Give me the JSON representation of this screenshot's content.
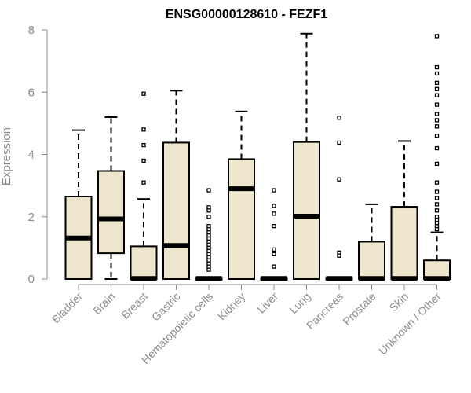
{
  "chart_data": {
    "type": "box",
    "title": "ENSG00000128610 - FEZF1",
    "xlabel": "",
    "ylabel": "Expression",
    "ylim": [
      0,
      8
    ],
    "yticks": [
      0,
      2,
      4,
      6,
      8
    ],
    "grid": false,
    "box_fill": "#ede6cd",
    "stroke": "#000000",
    "categories": [
      "Bladder",
      "Brain",
      "Breast",
      "Gastric",
      "Hematopoietic cells",
      "Kidney",
      "Liver",
      "Lung",
      "Pancreas",
      "Prostate",
      "Skin",
      "Unknown / Other"
    ],
    "boxes": [
      {
        "label": "Bladder",
        "min": 0,
        "q1": 0,
        "median": 1.32,
        "q3": 2.65,
        "max": 4.78,
        "outliers": []
      },
      {
        "label": "Brain",
        "min": 0,
        "q1": 0.83,
        "median": 1.93,
        "q3": 3.47,
        "max": 5.2,
        "outliers": []
      },
      {
        "label": "Breast",
        "min": 0,
        "q1": 0,
        "median": 0.02,
        "q3": 1.05,
        "max": 2.57,
        "outliers": [
          3.1,
          3.8,
          4.3,
          4.8,
          5.95
        ]
      },
      {
        "label": "Gastric",
        "min": 0,
        "q1": 0,
        "median": 1.08,
        "q3": 4.38,
        "max": 6.05,
        "outliers": []
      },
      {
        "label": "Hematopoietic cells",
        "min": 0,
        "q1": 0,
        "median": 0.02,
        "q3": 0.02,
        "max": 0.05,
        "outliers": [
          0.3,
          0.4,
          0.5,
          0.6,
          0.7,
          0.8,
          0.9,
          1.0,
          1.1,
          1.2,
          1.3,
          1.4,
          1.5,
          1.6,
          1.7,
          2.0,
          2.2,
          2.3,
          2.85
        ]
      },
      {
        "label": "Kidney",
        "min": 0,
        "q1": 0,
        "median": 2.9,
        "q3": 3.85,
        "max": 5.38,
        "outliers": []
      },
      {
        "label": "Liver",
        "min": 0,
        "q1": 0,
        "median": 0.02,
        "q3": 0.02,
        "max": 0.05,
        "outliers": [
          0.4,
          0.8,
          0.95,
          1.7,
          2.1,
          2.35,
          2.85
        ]
      },
      {
        "label": "Lung",
        "min": 0,
        "q1": 0,
        "median": 2.02,
        "q3": 4.4,
        "max": 7.88,
        "outliers": []
      },
      {
        "label": "Pancreas",
        "min": 0,
        "q1": 0,
        "median": 0.02,
        "q3": 0.02,
        "max": 0.05,
        "outliers": [
          0.75,
          0.85,
          3.2,
          4.38,
          5.18
        ]
      },
      {
        "label": "Prostate",
        "min": 0,
        "q1": 0,
        "median": 0.02,
        "q3": 1.2,
        "max": 2.4,
        "outliers": []
      },
      {
        "label": "Skin",
        "min": 0,
        "q1": 0,
        "median": 0.02,
        "q3": 2.32,
        "max": 4.43,
        "outliers": []
      },
      {
        "label": "Unknown / Other",
        "min": 0,
        "q1": 0,
        "median": 0.02,
        "q3": 0.6,
        "max": 1.5,
        "outliers": [
          1.6,
          1.7,
          1.8,
          1.9,
          2.0,
          2.2,
          2.4,
          2.6,
          2.8,
          3.1,
          3.7,
          4.2,
          4.6,
          4.9,
          5.1,
          5.3,
          5.6,
          5.9,
          6.1,
          6.3,
          6.6,
          6.8,
          7.8
        ]
      }
    ]
  }
}
